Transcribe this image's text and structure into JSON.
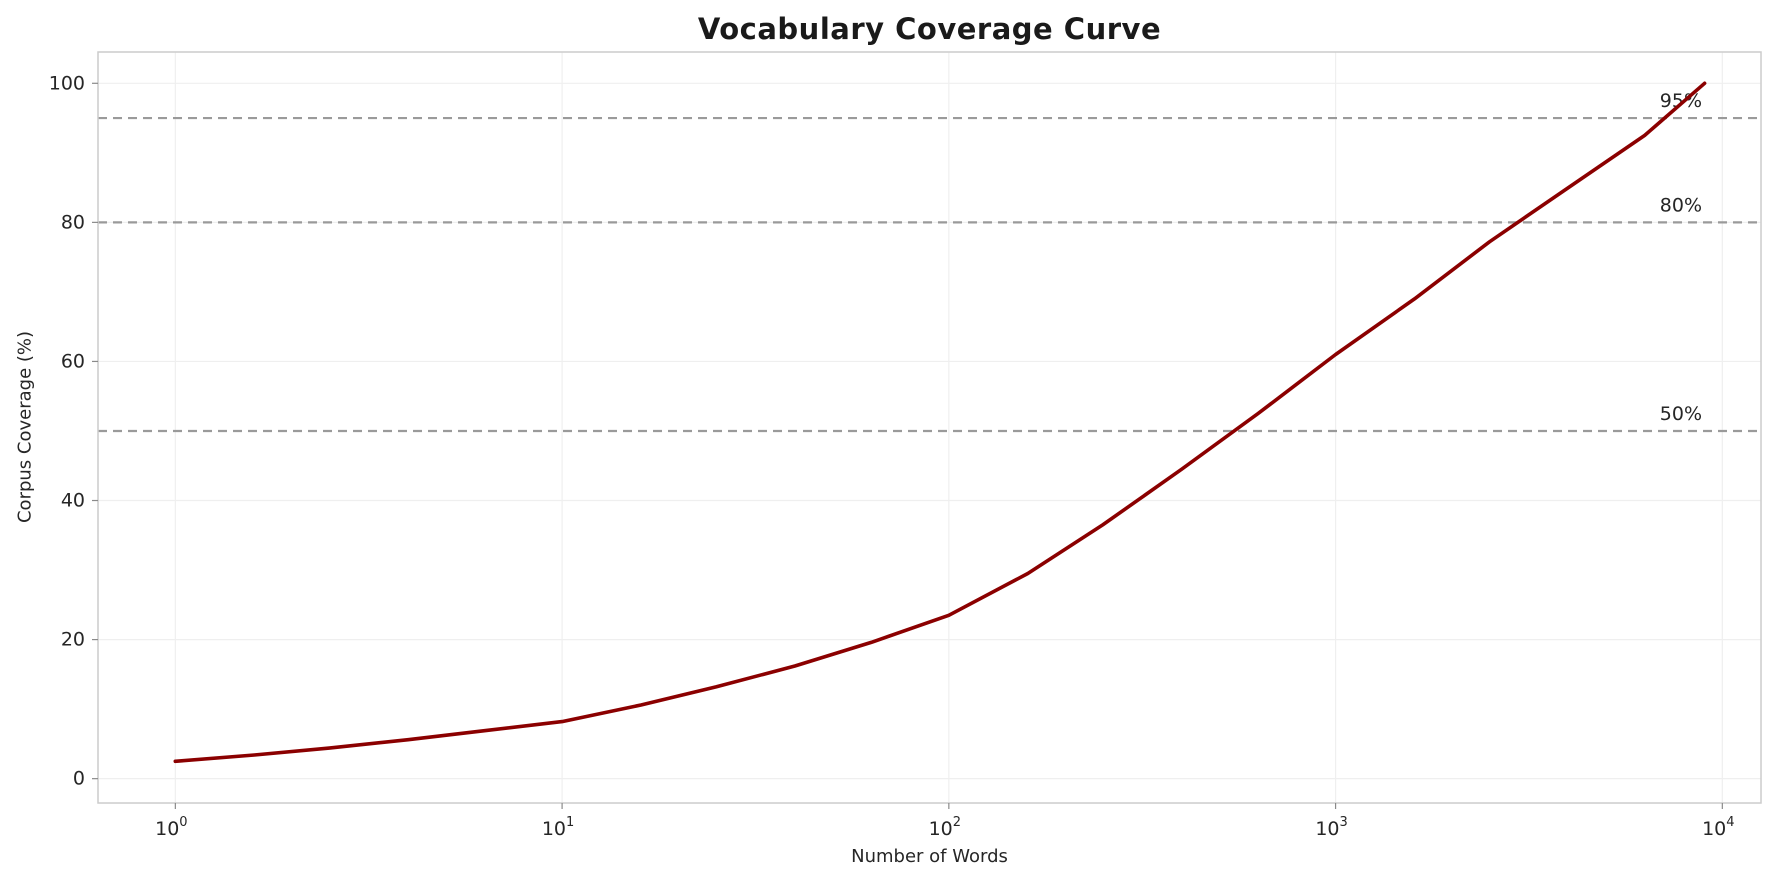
{
  "chart_data": {
    "type": "line",
    "title": "Vocabulary Coverage Curve",
    "xlabel": "Number of Words",
    "ylabel": "Corpus Coverage (%)",
    "x_scale": "log",
    "x_ticks": [
      1,
      10,
      100,
      1000,
      10000
    ],
    "y_ticks": [
      0,
      20,
      40,
      60,
      80,
      100
    ],
    "xlim_log": [
      -0.2,
      4.1
    ],
    "ylim": [
      -3.5,
      104.5
    ],
    "grid": true,
    "legend": "none",
    "line_color": "#8b0000",
    "grid_color": "#efefef",
    "spine_color": "#cccccc",
    "ref_color": "#9a9a9a",
    "text_color": "#262626",
    "series": [
      {
        "name": "coverage",
        "x": [
          1,
          1.6,
          2.5,
          4,
          6.3,
          10,
          16,
          25,
          40,
          63,
          100,
          160,
          250,
          400,
          630,
          1000,
          1600,
          2500,
          4000,
          6300,
          9000
        ],
        "y": [
          2.5,
          3.4,
          4.4,
          5.6,
          6.9,
          8.2,
          10.6,
          13.2,
          16.2,
          19.6,
          23.5,
          29.5,
          36.5,
          44.5,
          52.5,
          61.0,
          69.0,
          77.2,
          85.0,
          92.5,
          100.0
        ]
      }
    ],
    "reference_lines": [
      {
        "value": 50,
        "label": "50%"
      },
      {
        "value": 80,
        "label": "80%"
      },
      {
        "value": 95,
        "label": "95%"
      }
    ]
  }
}
